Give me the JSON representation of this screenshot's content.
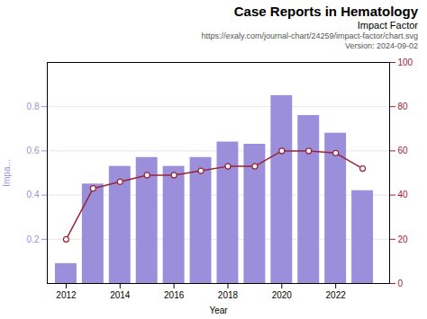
{
  "chart_data": {
    "type": "bar",
    "title": "Case Reports in Hematology",
    "subtitle": "Impact Factor",
    "annotations": [
      "https://exaly.com/journal-chart/24259/impact-factor/chart.svg",
      "Version: 2024-09-02"
    ],
    "xlabel": "Year",
    "ylabel": "Impa...",
    "x": [
      2012,
      2013,
      2014,
      2015,
      2016,
      2017,
      2018,
      2019,
      2020,
      2021,
      2022,
      2023
    ],
    "series": [
      {
        "type": "bar",
        "color": "#9b8fdb",
        "values": [
          0.09,
          0.45,
          0.53,
          0.57,
          0.53,
          0.57,
          0.64,
          0.63,
          0.85,
          0.76,
          0.68,
          0.42
        ]
      },
      {
        "type": "line",
        "axis": "y2",
        "color": "#9b2335",
        "marker": "circle",
        "values": [
          20,
          43,
          46,
          49,
          49,
          51,
          53,
          53,
          60,
          60,
          59,
          52
        ]
      }
    ],
    "xlim": [
      2011.3,
      2024.0
    ],
    "xticks": [
      2012,
      2014,
      2016,
      2018,
      2020,
      2022
    ],
    "ylim": [
      0,
      1.0
    ],
    "yticks": [
      0.2,
      0.4,
      0.6,
      0.8
    ],
    "y2lim": [
      0,
      100
    ],
    "y2ticks": [
      0,
      20,
      40,
      60,
      80,
      100
    ],
    "grid": true
  }
}
